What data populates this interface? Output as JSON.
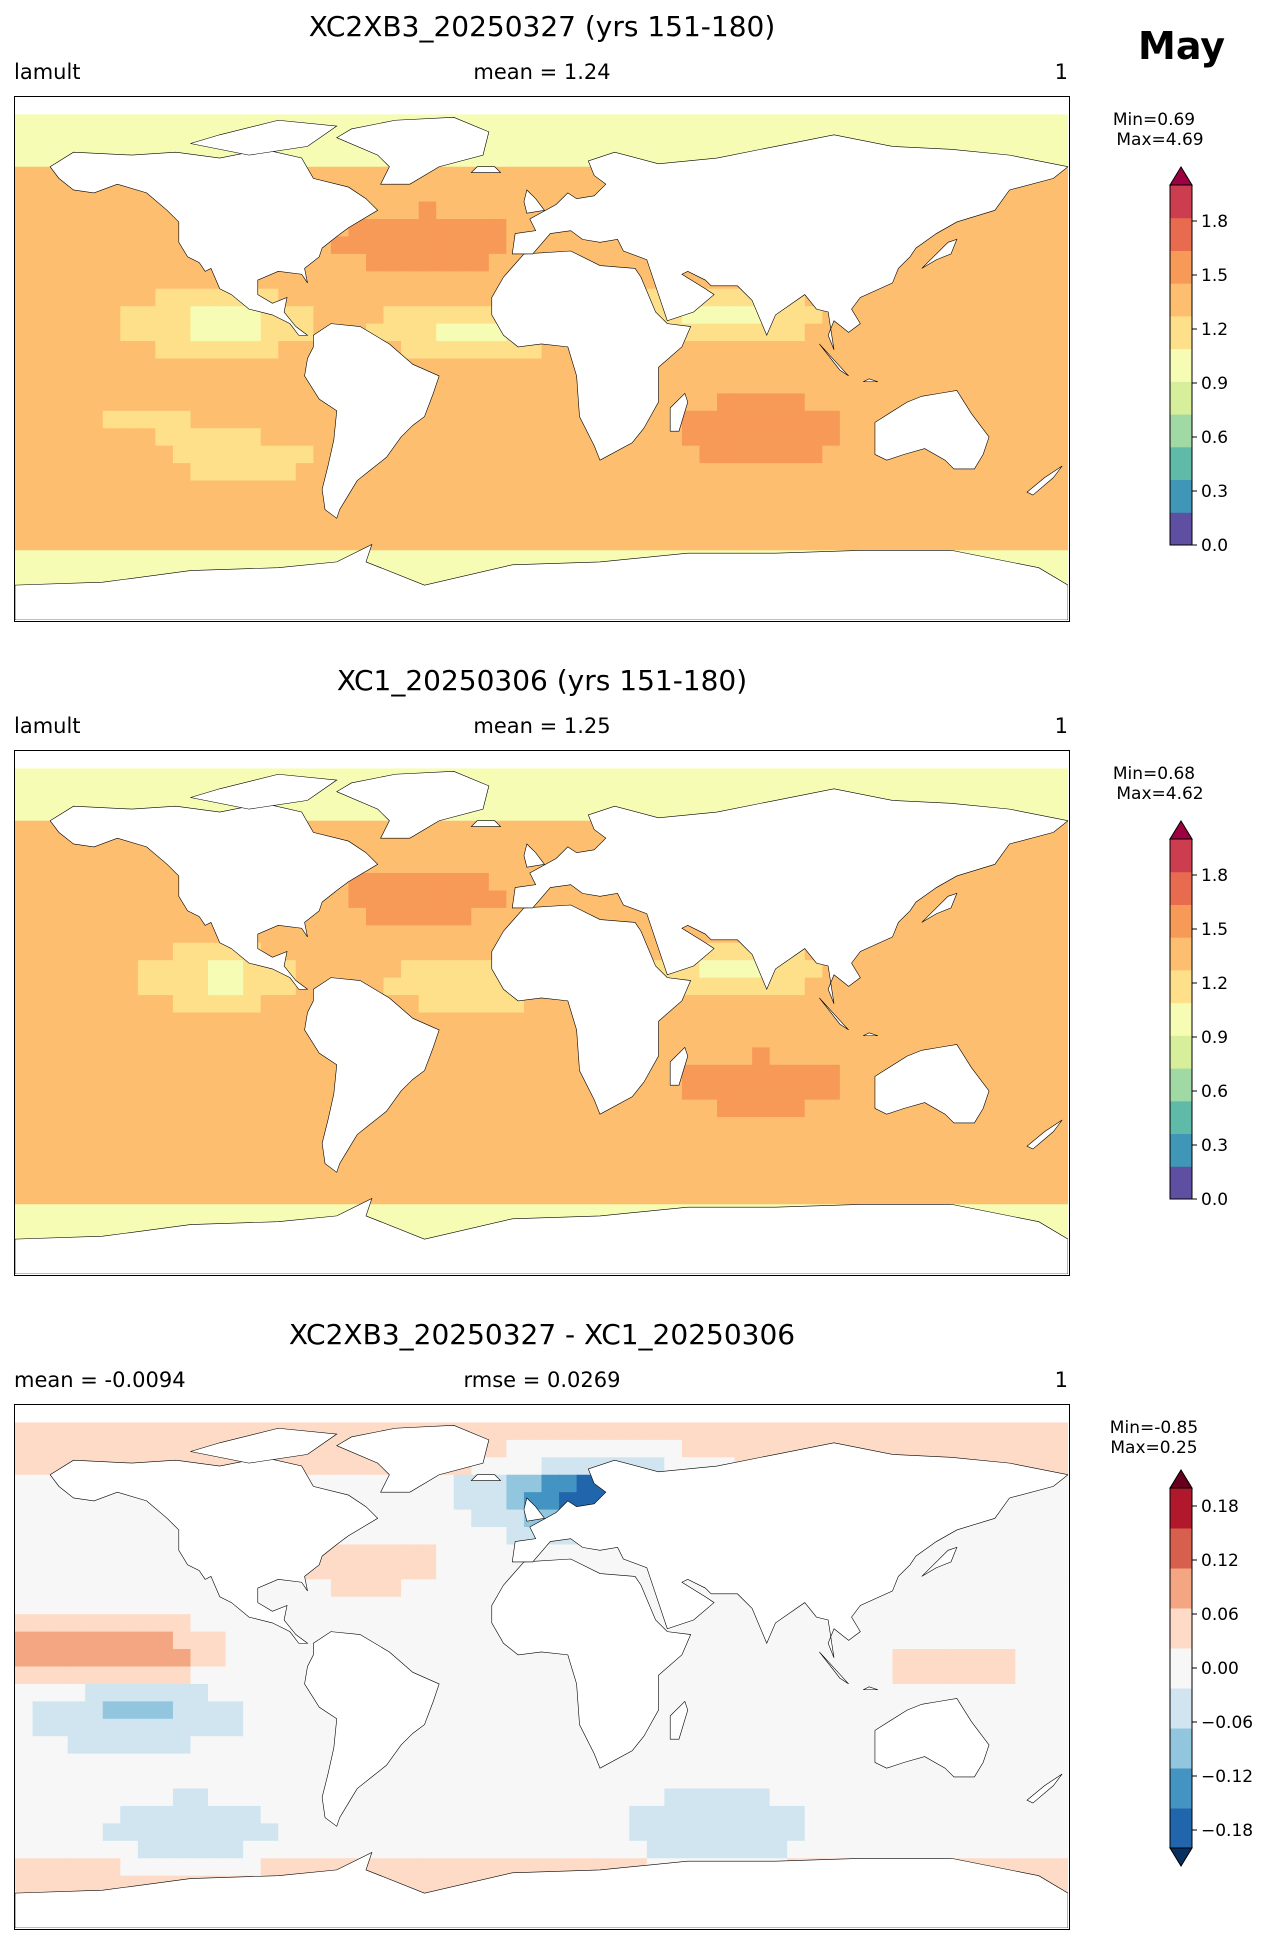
{
  "month_label": "May",
  "chart_data": [
    {
      "type": "heatmap",
      "title": "XC2XB3_20250327 (yrs 151-180)",
      "left_label": "lamult",
      "center_label": "mean = 1.24",
      "right_label": "1",
      "min_text": "Min=0.69",
      "max_text": "Max=4.69",
      "colorbar": {
        "colormap": "Spectral_r",
        "range": [
          0.0,
          2.0
        ],
        "ticks": [
          "0.0",
          "0.3",
          "0.6",
          "0.9",
          "1.2",
          "1.5",
          "1.8"
        ],
        "extend": "max",
        "colors": [
          "#5e4fa2",
          "#3f96b7",
          "#5fbaa8",
          "#a1d9a4",
          "#d7ef9b",
          "#f7fcb5",
          "#fee08b",
          "#fdbe6f",
          "#f89a57",
          "#e86b4f",
          "#cb3d4f",
          "#9e0142"
        ]
      },
      "field": {
        "background_value": 1.4,
        "polar_band_value": 1.05,
        "anomalies": [
          {
            "lon": -110,
            "lat": 12,
            "value": 1.0
          },
          {
            "lon": -25,
            "lat": 10,
            "value": 1.05
          },
          {
            "lon": 65,
            "lat": 15,
            "value": 1.0
          },
          {
            "lon": -140,
            "lat": -20,
            "value": 1.25
          },
          {
            "lon": -100,
            "lat": -35,
            "value": 1.2
          },
          {
            "lon": 75,
            "lat": -25,
            "value": 1.55
          },
          {
            "lon": -40,
            "lat": 40,
            "value": 1.55
          }
        ]
      }
    },
    {
      "type": "heatmap",
      "title": "XC1_20250306 (yrs 151-180)",
      "left_label": "lamult",
      "center_label": "mean = 1.25",
      "right_label": "1",
      "min_text": "Min=0.68",
      "max_text": "Max=4.62",
      "colorbar": {
        "colormap": "Spectral_r",
        "range": [
          0.0,
          2.0
        ],
        "ticks": [
          "0.0",
          "0.3",
          "0.6",
          "0.9",
          "1.2",
          "1.5",
          "1.8"
        ],
        "extend": "max",
        "colors": [
          "#5e4fa2",
          "#3f96b7",
          "#5fbaa8",
          "#a1d9a4",
          "#d7ef9b",
          "#f7fcb5",
          "#fee08b",
          "#fdbe6f",
          "#f89a57",
          "#e86b4f",
          "#cb3d4f",
          "#9e0142"
        ]
      },
      "field": {
        "background_value": 1.42,
        "polar_band_value": 1.05,
        "anomalies": [
          {
            "lon": -110,
            "lat": 12,
            "value": 1.05
          },
          {
            "lon": -25,
            "lat": 10,
            "value": 1.1
          },
          {
            "lon": 65,
            "lat": 15,
            "value": 1.05
          },
          {
            "lon": -140,
            "lat": -20,
            "value": 1.35
          },
          {
            "lon": 75,
            "lat": -25,
            "value": 1.5
          },
          {
            "lon": -40,
            "lat": 40,
            "value": 1.5
          }
        ]
      }
    },
    {
      "type": "heatmap",
      "title": "XC2XB3_20250327 - XC1_20250306",
      "left_label": "mean = -0.0094",
      "center_label": "rmse = 0.0269",
      "right_label": "1",
      "min_text": "Min=-0.85",
      "max_text": "Max=0.25",
      "colorbar": {
        "colormap": "RdBu_r",
        "range": [
          -0.2,
          0.2
        ],
        "ticks": [
          "−0.18",
          "−0.12",
          "−0.06",
          "0.00",
          "0.06",
          "0.12",
          "0.18"
        ],
        "extend": "both",
        "colors": [
          "#053061",
          "#2166ac",
          "#4393c3",
          "#92c5de",
          "#d1e5f0",
          "#f7f7f7",
          "#fddbc7",
          "#f4a582",
          "#d6604d",
          "#b2182b",
          "#67001f"
        ]
      },
      "field": {
        "background_value": -0.01,
        "polar_band_value": 0.03,
        "anomalies": [
          {
            "lon": -140,
            "lat": 5,
            "value": 0.1
          },
          {
            "lon": -170,
            "lat": 5,
            "value": 0.08
          },
          {
            "lon": -140,
            "lat": -15,
            "value": -0.08
          },
          {
            "lon": -60,
            "lat": 35,
            "value": 0.06
          },
          {
            "lon": 140,
            "lat": 0,
            "value": 0.05
          },
          {
            "lon": 60,
            "lat": -55,
            "value": -0.05
          },
          {
            "lon": -120,
            "lat": -55,
            "value": -0.04
          },
          {
            "lon": 20,
            "lat": 58,
            "value": -0.2
          }
        ]
      }
    }
  ]
}
